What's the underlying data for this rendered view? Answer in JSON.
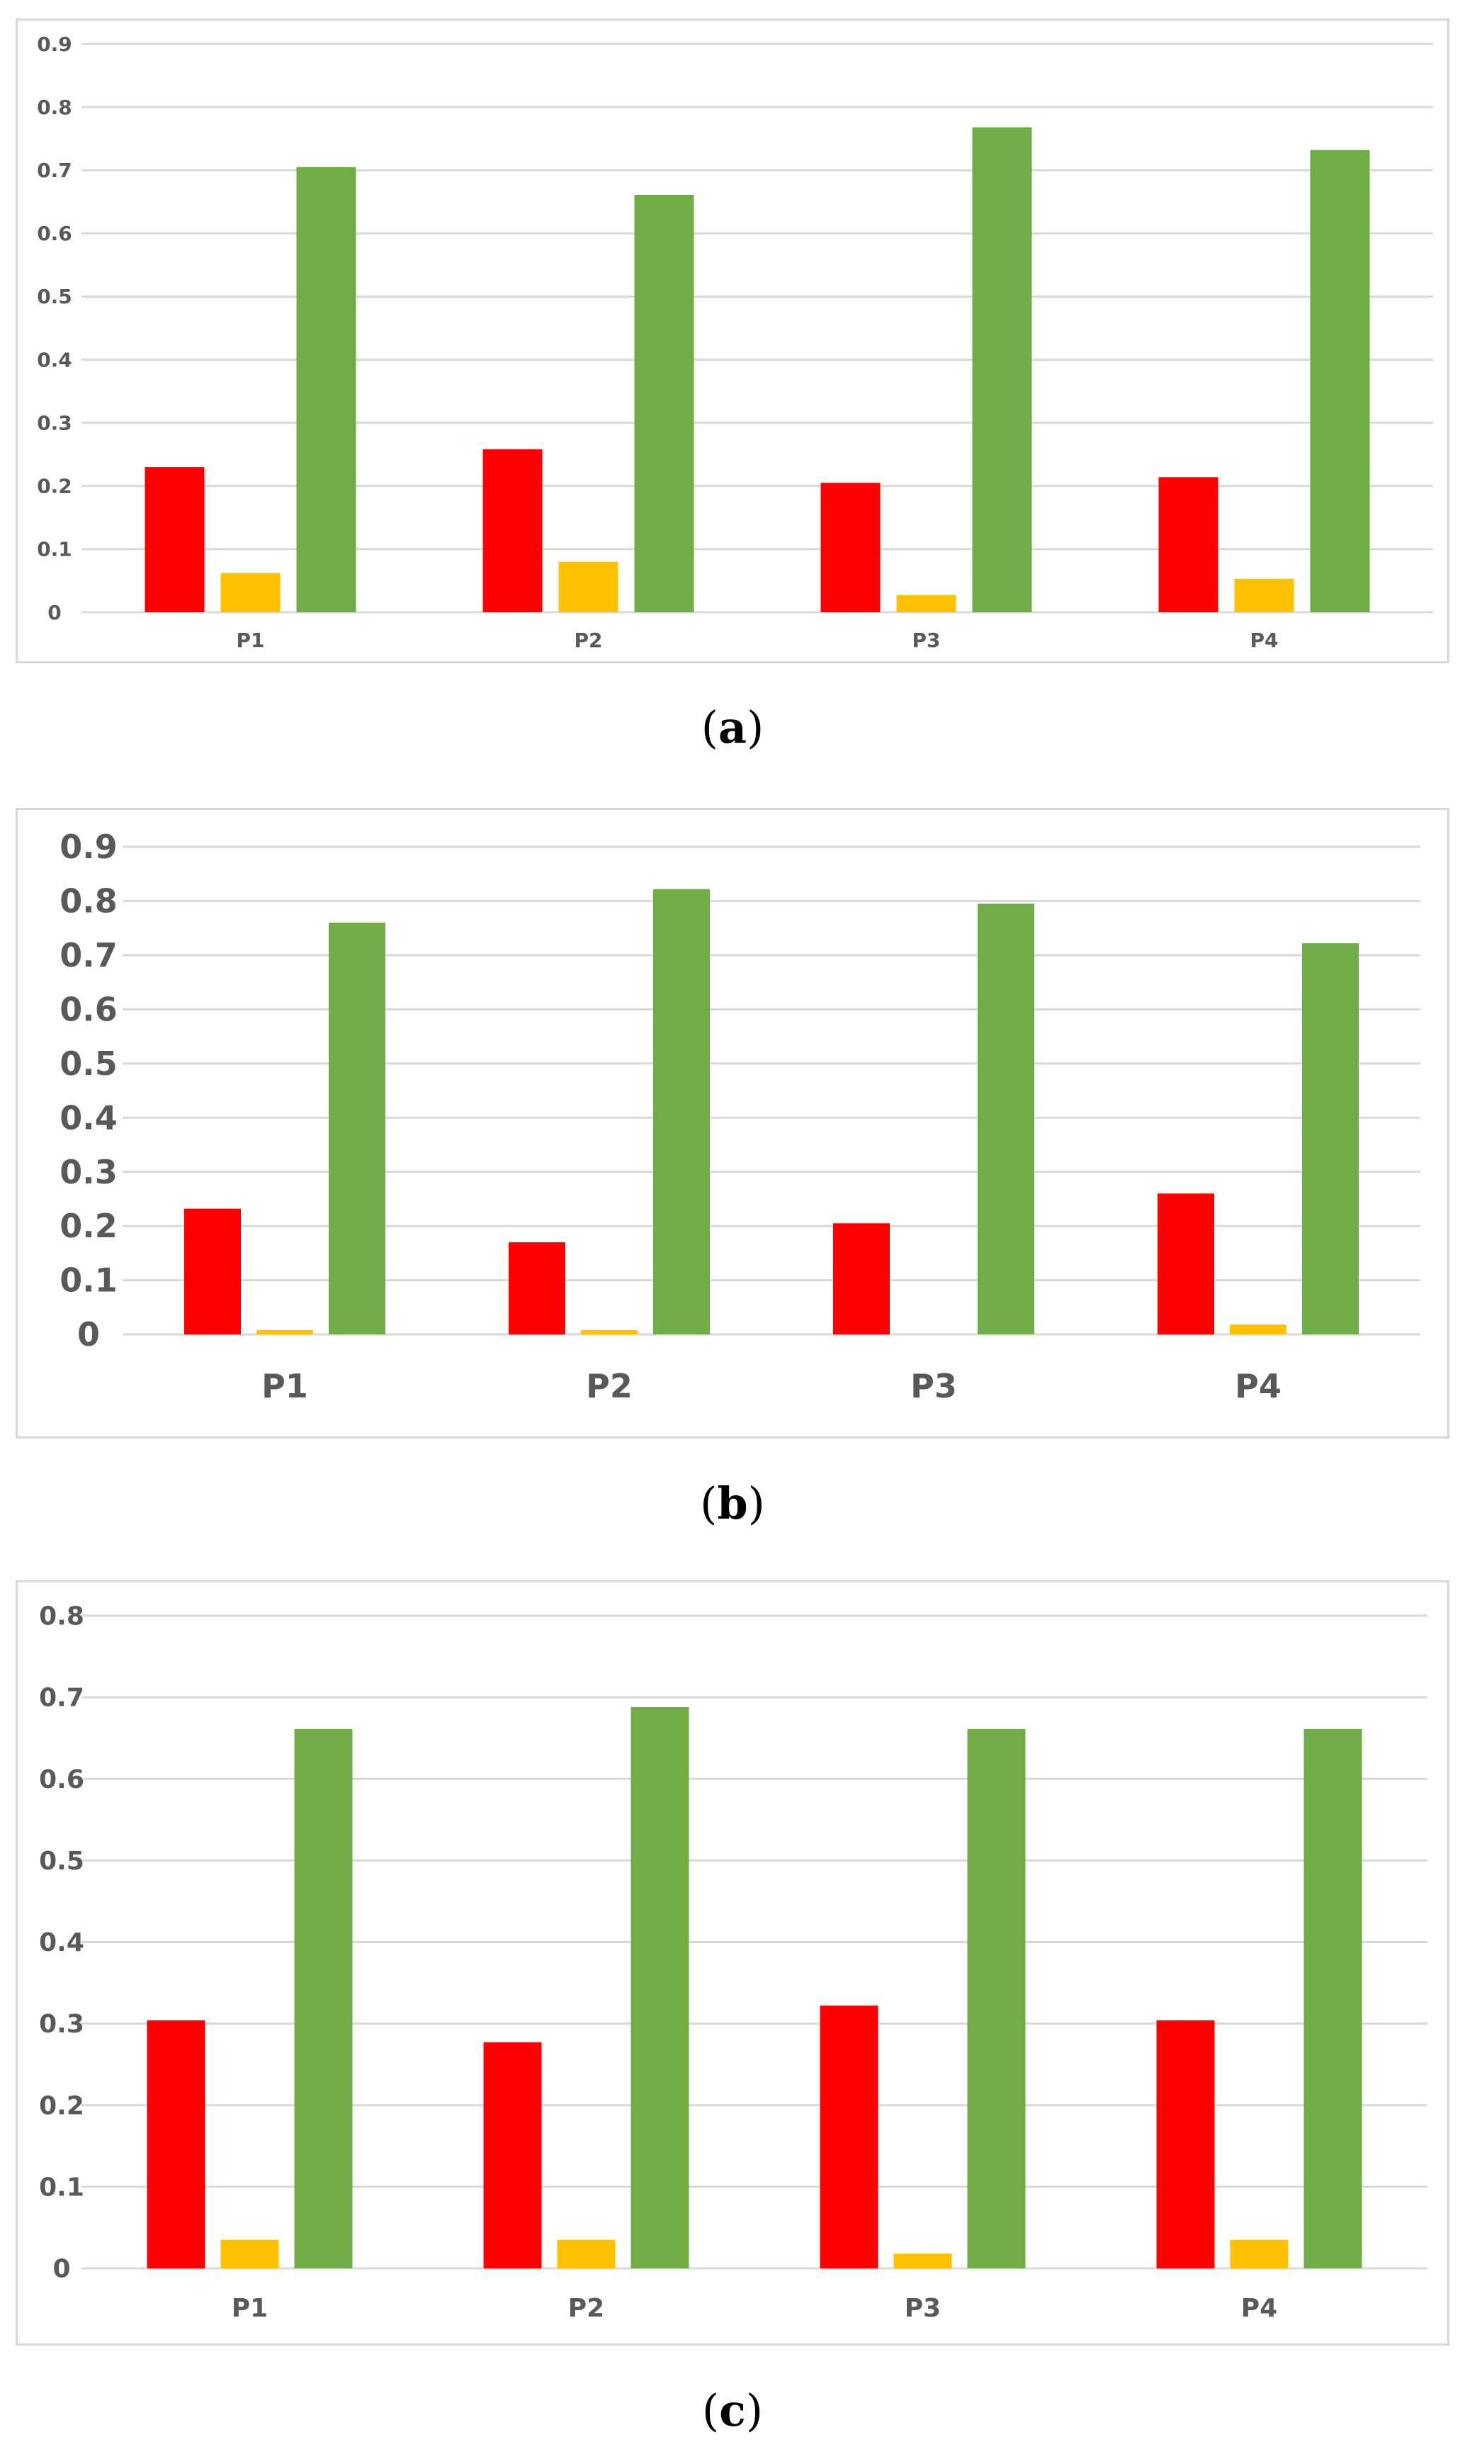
{
  "colors": {
    "red": "#ff0000",
    "yellow": "#ffc000",
    "green": "#70ad47",
    "grid": "#d9d9d9",
    "tick": "#595959"
  },
  "captions": [
    "a",
    "b",
    "c"
  ],
  "chart_data": [
    {
      "type": "bar",
      "caption": "a",
      "categories": [
        "P1",
        "P2",
        "P3",
        "P4"
      ],
      "series": [
        {
          "name": "red",
          "values": [
            0.23,
            0.258,
            0.205,
            0.214
          ]
        },
        {
          "name": "yellow",
          "values": [
            0.062,
            0.08,
            0.027,
            0.053
          ]
        },
        {
          "name": "green",
          "values": [
            0.705,
            0.661,
            0.768,
            0.732
          ]
        }
      ],
      "ylim": [
        0,
        0.9
      ],
      "yticks": [
        "0",
        "0.1",
        "0.2",
        "0.3",
        "0.4",
        "0.5",
        "0.6",
        "0.7",
        "0.8",
        "0.9"
      ],
      "title": "",
      "xlabel": "",
      "ylabel": "",
      "grid": true,
      "legend": "none"
    },
    {
      "type": "bar",
      "caption": "b",
      "categories": [
        "P1",
        "P2",
        "P3",
        "P4"
      ],
      "series": [
        {
          "name": "red",
          "values": [
            0.232,
            0.17,
            0.205,
            0.26
          ]
        },
        {
          "name": "yellow",
          "values": [
            0.008,
            0.008,
            0.0,
            0.018
          ]
        },
        {
          "name": "green",
          "values": [
            0.76,
            0.822,
            0.795,
            0.722
          ]
        }
      ],
      "ylim": [
        0,
        0.9
      ],
      "yticks": [
        "0",
        "0.1",
        "0.2",
        "0.3",
        "0.4",
        "0.5",
        "0.6",
        "0.7",
        "0.8",
        "0.9"
      ],
      "title": "",
      "xlabel": "",
      "ylabel": "",
      "grid": true,
      "legend": "none"
    },
    {
      "type": "bar",
      "caption": "c",
      "categories": [
        "P1",
        "P2",
        "P3",
        "P4"
      ],
      "series": [
        {
          "name": "red",
          "values": [
            0.304,
            0.277,
            0.322,
            0.304
          ]
        },
        {
          "name": "yellow",
          "values": [
            0.035,
            0.035,
            0.018,
            0.035
          ]
        },
        {
          "name": "green",
          "values": [
            0.661,
            0.688,
            0.661,
            0.661
          ]
        }
      ],
      "ylim": [
        0,
        0.8
      ],
      "yticks": [
        "0",
        "0.1",
        "0.2",
        "0.3",
        "0.4",
        "0.5",
        "0.6",
        "0.7",
        "0.8"
      ],
      "title": "",
      "xlabel": "",
      "ylabel": "",
      "grid": true,
      "legend": "none"
    }
  ]
}
